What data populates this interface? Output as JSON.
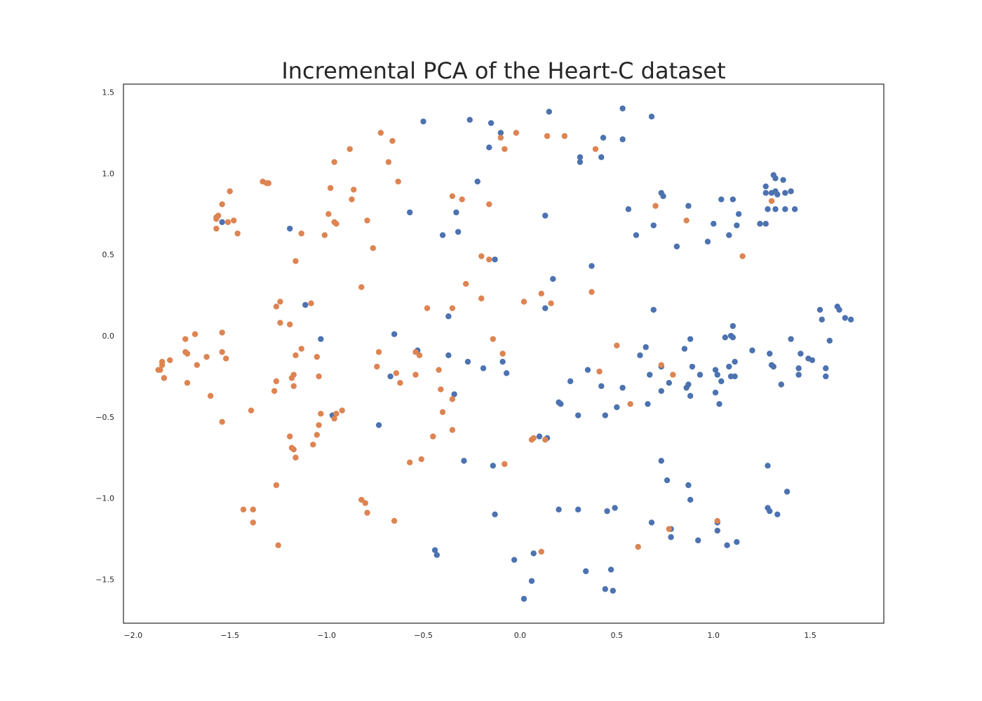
{
  "chart_data": {
    "type": "scatter",
    "title": "Incremental PCA of the Heart-C dataset",
    "xlabel": "",
    "ylabel": "",
    "xlim": [
      -2.05,
      1.88
    ],
    "ylim": [
      -1.77,
      1.55
    ],
    "grid": false,
    "xticks": [
      -2.0,
      -1.5,
      -1.0,
      -0.5,
      0.0,
      0.5,
      1.0,
      1.5
    ],
    "yticks": [
      -1.5,
      -1.0,
      -0.5,
      0.0,
      0.5,
      1.0,
      1.5
    ],
    "xtick_labels": [
      "−2.0",
      "−1.5",
      "−1.0",
      "−0.5",
      "0.0",
      "0.5",
      "1.0",
      "1.5"
    ],
    "ytick_labels": [
      "−1.5",
      "−1.0",
      "−0.5",
      "0.0",
      "0.5",
      "1.0",
      "1.5"
    ],
    "series": [
      {
        "color": "#4c72b0",
        "points": [
          [
            -0.5,
            1.32
          ],
          [
            -0.26,
            1.33
          ],
          [
            -0.15,
            1.31
          ],
          [
            -0.1,
            1.25
          ],
          [
            -0.16,
            1.16
          ],
          [
            0.15,
            1.38
          ],
          [
            0.53,
            1.4
          ],
          [
            0.68,
            1.35
          ],
          [
            0.53,
            1.21
          ],
          [
            0.43,
            1.22
          ],
          [
            0.31,
            1.1
          ],
          [
            0.31,
            1.07
          ],
          [
            0.42,
            1.1
          ],
          [
            -0.22,
            0.95
          ],
          [
            -0.57,
            0.76
          ],
          [
            -0.33,
            0.76
          ],
          [
            -0.4,
            0.62
          ],
          [
            -0.32,
            0.64
          ],
          [
            -1.19,
            0.66
          ],
          [
            -1.54,
            0.7
          ],
          [
            -0.13,
            0.47
          ],
          [
            0.13,
            0.74
          ],
          [
            0.73,
            0.88
          ],
          [
            0.74,
            0.86
          ],
          [
            0.56,
            0.78
          ],
          [
            0.69,
            0.68
          ],
          [
            0.6,
            0.62
          ],
          [
            0.81,
            0.55
          ],
          [
            0.87,
            0.8
          ],
          [
            0.97,
            0.58
          ],
          [
            1.0,
            0.69
          ],
          [
            1.04,
            0.84
          ],
          [
            1.1,
            0.84
          ],
          [
            1.13,
            0.75
          ],
          [
            1.12,
            0.68
          ],
          [
            1.08,
            0.62
          ],
          [
            1.24,
            0.69
          ],
          [
            1.27,
            0.69
          ],
          [
            1.27,
            0.92
          ],
          [
            1.27,
            0.88
          ],
          [
            1.31,
            0.99
          ],
          [
            1.32,
            0.97
          ],
          [
            1.36,
            0.96
          ],
          [
            1.3,
            0.88
          ],
          [
            1.32,
            0.89
          ],
          [
            1.33,
            0.87
          ],
          [
            1.37,
            0.88
          ],
          [
            1.4,
            0.89
          ],
          [
            1.28,
            0.78
          ],
          [
            1.32,
            0.78
          ],
          [
            1.37,
            0.78
          ],
          [
            1.42,
            0.78
          ],
          [
            0.37,
            0.43
          ],
          [
            0.17,
            0.35
          ],
          [
            0.13,
            0.17
          ],
          [
            0.69,
            0.16
          ],
          [
            1.55,
            0.16
          ],
          [
            1.56,
            0.1
          ],
          [
            1.64,
            0.18
          ],
          [
            1.65,
            0.16
          ],
          [
            1.68,
            0.11
          ],
          [
            1.71,
            0.1
          ],
          [
            -1.11,
            0.19
          ],
          [
            -0.37,
            0.12
          ],
          [
            -1.03,
            -0.02
          ],
          [
            -0.65,
            0.01
          ],
          [
            -0.53,
            -0.09
          ],
          [
            -0.37,
            -0.12
          ],
          [
            -0.67,
            -0.25
          ],
          [
            -0.34,
            -0.36
          ],
          [
            -0.27,
            -0.16
          ],
          [
            -0.19,
            -0.2
          ],
          [
            -0.09,
            -0.16
          ],
          [
            -0.07,
            -0.23
          ],
          [
            -0.97,
            -0.49
          ],
          [
            -0.73,
            -0.55
          ],
          [
            -0.29,
            -0.77
          ],
          [
            -0.14,
            -0.8
          ],
          [
            -0.13,
            -1.1
          ],
          [
            -0.44,
            -1.32
          ],
          [
            -0.43,
            -1.35
          ],
          [
            0.26,
            -0.28
          ],
          [
            0.35,
            -0.21
          ],
          [
            0.42,
            -0.31
          ],
          [
            0.2,
            -0.41
          ],
          [
            0.21,
            -0.42
          ],
          [
            0.3,
            -0.49
          ],
          [
            0.44,
            -0.49
          ],
          [
            0.5,
            -0.44
          ],
          [
            0.53,
            -0.32
          ],
          [
            0.62,
            -0.12
          ],
          [
            0.65,
            -0.07
          ],
          [
            0.67,
            -0.24
          ],
          [
            0.73,
            -0.34
          ],
          [
            0.73,
            -0.19
          ],
          [
            0.66,
            -0.42
          ],
          [
            0.77,
            -0.29
          ],
          [
            0.85,
            -0.08
          ],
          [
            0.88,
            -0.02
          ],
          [
            0.89,
            -0.19
          ],
          [
            0.87,
            -0.3
          ],
          [
            0.86,
            -0.32
          ],
          [
            0.88,
            -0.37
          ],
          [
            0.93,
            -0.24
          ],
          [
            1.01,
            -0.21
          ],
          [
            1.02,
            -0.24
          ],
          [
            1.04,
            -0.28
          ],
          [
            1.01,
            -0.35
          ],
          [
            1.03,
            -0.42
          ],
          [
            1.06,
            -0.01
          ],
          [
            1.08,
            -0.19
          ],
          [
            1.09,
            0.0
          ],
          [
            1.1,
            -0.01
          ],
          [
            1.1,
            0.06
          ],
          [
            1.09,
            -0.25
          ],
          [
            1.11,
            -0.25
          ],
          [
            1.11,
            -0.16
          ],
          [
            1.2,
            -0.09
          ],
          [
            1.29,
            -0.11
          ],
          [
            1.3,
            -0.18
          ],
          [
            1.31,
            -0.19
          ],
          [
            1.35,
            -0.3
          ],
          [
            1.4,
            -0.02
          ],
          [
            1.44,
            -0.2
          ],
          [
            1.44,
            -0.24
          ],
          [
            1.45,
            -0.11
          ],
          [
            1.49,
            -0.14
          ],
          [
            1.51,
            -0.15
          ],
          [
            1.58,
            -0.2
          ],
          [
            1.58,
            -0.25
          ],
          [
            1.6,
            -0.03
          ],
          [
            0.1,
            -0.62
          ],
          [
            0.14,
            -0.63
          ],
          [
            0.73,
            -0.77
          ],
          [
            0.76,
            -0.89
          ],
          [
            0.87,
            -0.92
          ],
          [
            0.88,
            -1.01
          ],
          [
            1.28,
            -0.8
          ],
          [
            1.38,
            -0.96
          ],
          [
            0.68,
            -1.15
          ],
          [
            0.78,
            -1.19
          ],
          [
            0.78,
            -1.24
          ],
          [
            0.92,
            -1.26
          ],
          [
            1.02,
            -1.15
          ],
          [
            1.02,
            -1.2
          ],
          [
            1.07,
            -1.29
          ],
          [
            1.12,
            -1.27
          ],
          [
            1.28,
            -1.06
          ],
          [
            1.29,
            -1.08
          ],
          [
            1.33,
            -1.1
          ],
          [
            0.2,
            -1.07
          ],
          [
            0.3,
            -1.07
          ],
          [
            0.45,
            -1.08
          ],
          [
            0.49,
            -1.06
          ],
          [
            -0.03,
            -1.38
          ],
          [
            0.07,
            -1.34
          ],
          [
            0.06,
            -1.51
          ],
          [
            0.02,
            -1.62
          ],
          [
            0.34,
            -1.45
          ],
          [
            0.44,
            -1.56
          ],
          [
            0.47,
            -1.44
          ],
          [
            0.48,
            -1.57
          ]
        ]
      },
      {
        "color": "#dd8452",
        "points": [
          [
            -0.72,
            1.25
          ],
          [
            -0.66,
            1.2
          ],
          [
            -0.88,
            1.15
          ],
          [
            -0.68,
            1.07
          ],
          [
            -0.96,
            1.07
          ],
          [
            -0.63,
            0.95
          ],
          [
            -0.98,
            0.91
          ],
          [
            -0.86,
            0.9
          ],
          [
            -0.87,
            0.84
          ],
          [
            -0.99,
            0.75
          ],
          [
            -0.79,
            0.71
          ],
          [
            -0.96,
            0.7
          ],
          [
            -0.95,
            0.69
          ],
          [
            -1.01,
            0.62
          ],
          [
            -1.13,
            0.63
          ],
          [
            -0.76,
            0.54
          ],
          [
            -1.33,
            0.95
          ],
          [
            -1.3,
            0.94
          ],
          [
            -1.31,
            0.94
          ],
          [
            -1.5,
            0.89
          ],
          [
            -1.54,
            0.81
          ],
          [
            -1.56,
            0.74
          ],
          [
            -1.57,
            0.73
          ],
          [
            -1.57,
            0.72
          ],
          [
            -1.51,
            0.7
          ],
          [
            -1.48,
            0.71
          ],
          [
            -1.57,
            0.66
          ],
          [
            -1.46,
            0.63
          ],
          [
            -0.35,
            0.86
          ],
          [
            -0.3,
            0.84
          ],
          [
            -0.16,
            0.81
          ],
          [
            -1.16,
            0.46
          ],
          [
            -0.82,
            0.3
          ],
          [
            -0.2,
            0.49
          ],
          [
            -0.16,
            0.47
          ],
          [
            -0.28,
            0.32
          ],
          [
            -0.2,
            0.23
          ],
          [
            -0.1,
            1.22
          ],
          [
            -0.08,
            1.15
          ],
          [
            -0.02,
            1.25
          ],
          [
            0.14,
            1.23
          ],
          [
            0.23,
            1.23
          ],
          [
            0.39,
            1.15
          ],
          [
            0.7,
            0.8
          ],
          [
            0.86,
            0.71
          ],
          [
            1.15,
            0.49
          ],
          [
            1.3,
            0.83
          ],
          [
            -1.24,
            0.21
          ],
          [
            -1.26,
            0.18
          ],
          [
            -1.08,
            0.2
          ],
          [
            -1.19,
            0.07
          ],
          [
            -1.24,
            0.08
          ],
          [
            -0.48,
            0.17
          ],
          [
            -0.35,
            0.17
          ],
          [
            0.02,
            0.21
          ],
          [
            0.11,
            0.26
          ],
          [
            0.16,
            0.2
          ],
          [
            0.37,
            0.27
          ],
          [
            -1.87,
            -0.21
          ],
          [
            -1.86,
            -0.21
          ],
          [
            -1.85,
            -0.18
          ],
          [
            -1.85,
            -0.16
          ],
          [
            -1.84,
            -0.26
          ],
          [
            -1.81,
            -0.15
          ],
          [
            -1.73,
            -0.02
          ],
          [
            -1.73,
            -0.1
          ],
          [
            -1.72,
            -0.11
          ],
          [
            -1.72,
            -0.29
          ],
          [
            -1.68,
            0.01
          ],
          [
            -1.67,
            -0.18
          ],
          [
            -1.62,
            -0.13
          ],
          [
            -1.6,
            -0.37
          ],
          [
            -1.54,
            0.02
          ],
          [
            -1.54,
            -0.1
          ],
          [
            -1.52,
            -0.14
          ],
          [
            -1.54,
            -0.53
          ],
          [
            -1.39,
            -0.46
          ],
          [
            -1.13,
            -0.08
          ],
          [
            -1.16,
            -0.12
          ],
          [
            -1.17,
            -0.24
          ],
          [
            -1.18,
            -0.26
          ],
          [
            -1.17,
            -0.31
          ],
          [
            -1.26,
            -0.28
          ],
          [
            -1.27,
            -0.34
          ],
          [
            -1.05,
            -0.13
          ],
          [
            -1.04,
            -0.25
          ],
          [
            -1.03,
            -0.48
          ],
          [
            -1.04,
            -0.55
          ],
          [
            -1.05,
            -0.61
          ],
          [
            -1.07,
            -0.67
          ],
          [
            -1.19,
            -0.62
          ],
          [
            -1.18,
            -0.69
          ],
          [
            -1.17,
            -0.7
          ],
          [
            -1.16,
            -0.75
          ],
          [
            -0.95,
            -0.48
          ],
          [
            -0.96,
            -0.51
          ],
          [
            -0.92,
            -0.46
          ],
          [
            -0.73,
            -0.1
          ],
          [
            -0.74,
            -0.19
          ],
          [
            -0.64,
            -0.23
          ],
          [
            -0.62,
            -0.29
          ],
          [
            -0.54,
            -0.1
          ],
          [
            -0.52,
            -0.12
          ],
          [
            -0.54,
            -0.24
          ],
          [
            -0.42,
            -0.21
          ],
          [
            -0.41,
            -0.33
          ],
          [
            -0.35,
            -0.39
          ],
          [
            -0.4,
            -0.47
          ],
          [
            -0.35,
            -0.58
          ],
          [
            -0.45,
            -0.62
          ],
          [
            -0.51,
            -0.76
          ],
          [
            -0.57,
            -0.78
          ],
          [
            -0.14,
            -0.02
          ],
          [
            -0.09,
            -0.11
          ],
          [
            -0.08,
            -0.79
          ],
          [
            0.06,
            -0.64
          ],
          [
            0.07,
            -0.63
          ],
          [
            0.13,
            -0.64
          ],
          [
            0.41,
            -0.22
          ],
          [
            0.5,
            -0.06
          ],
          [
            0.57,
            -0.42
          ],
          [
            0.73,
            -0.18
          ],
          [
            0.79,
            -0.24
          ],
          [
            -1.26,
            -0.92
          ],
          [
            -1.43,
            -1.07
          ],
          [
            -1.38,
            -1.07
          ],
          [
            -1.38,
            -1.15
          ],
          [
            -1.25,
            -1.29
          ],
          [
            -0.82,
            -1.01
          ],
          [
            -0.8,
            -1.03
          ],
          [
            -0.79,
            -1.09
          ],
          [
            -0.65,
            -1.14
          ],
          [
            0.11,
            -1.33
          ],
          [
            0.61,
            -1.3
          ],
          [
            0.77,
            -1.19
          ],
          [
            1.02,
            -1.14
          ]
        ]
      }
    ]
  }
}
